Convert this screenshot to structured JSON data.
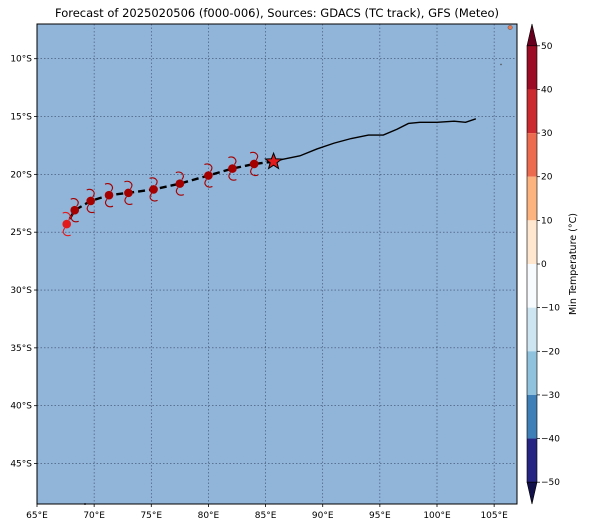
{
  "title": "Forecast of 2025020506 (f000-006), Sources: GDACS (TC track), GFS (Meteo)",
  "map": {
    "lon_range": [
      65,
      107
    ],
    "lat_range": [
      -48.5,
      -7
    ],
    "ocean_color": "#91b4d9",
    "grid": true,
    "lon_ticks": [
      65,
      70,
      75,
      80,
      85,
      90,
      95,
      100,
      105
    ],
    "lon_tick_labels": [
      "65°E",
      "70°E",
      "75°E",
      "80°E",
      "85°E",
      "90°E",
      "95°E",
      "100°E",
      "105°E"
    ],
    "lat_ticks": [
      -10,
      -15,
      -20,
      -25,
      -30,
      -35,
      -40,
      -45
    ],
    "lat_tick_labels": [
      "10°S",
      "15°S",
      "20°S",
      "25°S",
      "30°S",
      "35°S",
      "40°S",
      "45°S"
    ]
  },
  "track": {
    "observed_color": "#000000",
    "observed": [
      [
        85.7,
        -18.9
      ],
      [
        86.5,
        -18.7
      ],
      [
        88.0,
        -18.4
      ],
      [
        89.5,
        -17.8
      ],
      [
        91.0,
        -17.3
      ],
      [
        92.5,
        -16.9
      ],
      [
        94.0,
        -16.6
      ],
      [
        95.3,
        -16.6
      ],
      [
        96.5,
        -16.1
      ],
      [
        97.5,
        -15.6
      ],
      [
        98.5,
        -15.5
      ],
      [
        100.0,
        -15.5
      ],
      [
        101.5,
        -15.4
      ],
      [
        102.5,
        -15.5
      ],
      [
        103.4,
        -15.2
      ]
    ],
    "forecast": [
      [
        85.7,
        -18.9
      ],
      [
        84.0,
        -19.1
      ],
      [
        82.1,
        -19.5
      ],
      [
        80.0,
        -20.1
      ],
      [
        77.5,
        -20.8
      ],
      [
        75.2,
        -21.3
      ],
      [
        73.0,
        -21.6
      ],
      [
        71.3,
        -21.8
      ],
      [
        69.7,
        -22.3
      ],
      [
        68.3,
        -23.1
      ],
      [
        67.6,
        -24.3
      ]
    ],
    "current_position": [
      85.7,
      -18.9
    ],
    "current_marker": "star",
    "current_color": "#e31a1c",
    "forecast_points": [
      {
        "lon": 84.0,
        "lat": -19.1,
        "color": "#a50000"
      },
      {
        "lon": 82.1,
        "lat": -19.5,
        "color": "#a50000"
      },
      {
        "lon": 80.0,
        "lat": -20.1,
        "color": "#a50000"
      },
      {
        "lon": 77.5,
        "lat": -20.8,
        "color": "#a50000"
      },
      {
        "lon": 75.2,
        "lat": -21.3,
        "color": "#a50000"
      },
      {
        "lon": 73.0,
        "lat": -21.6,
        "color": "#a50000"
      },
      {
        "lon": 71.3,
        "lat": -21.8,
        "color": "#a50000"
      },
      {
        "lon": 69.7,
        "lat": -22.3,
        "color": "#a50000"
      },
      {
        "lon": 68.3,
        "lat": -23.1,
        "color": "#a50000"
      },
      {
        "lon": 67.6,
        "lat": -24.3,
        "color": "#e31a1c"
      }
    ]
  },
  "colorbar": {
    "label": "Min Temperature (°C)",
    "min": -55,
    "max": 55,
    "ticks": [
      50,
      40,
      30,
      20,
      10,
      0,
      -10,
      -20,
      -30,
      -40,
      -50
    ],
    "tick_labels": [
      "50",
      "40",
      "30",
      "20",
      "10",
      "0",
      "−10",
      "−20",
      "−30",
      "−40",
      "−50"
    ],
    "bands": [
      {
        "from": 50,
        "to": 55,
        "color": "#67001f"
      },
      {
        "from": 40,
        "to": 50,
        "color": "#9c0c24"
      },
      {
        "from": 30,
        "to": 40,
        "color": "#cb2a2f"
      },
      {
        "from": 20,
        "to": 30,
        "color": "#ec6a4e"
      },
      {
        "from": 10,
        "to": 20,
        "color": "#fdb37e"
      },
      {
        "from": 0,
        "to": 10,
        "color": "#fee6cf"
      },
      {
        "from": -10,
        "to": 0,
        "color": "#f8fbfd"
      },
      {
        "from": -20,
        "to": -10,
        "color": "#cde5f0"
      },
      {
        "from": -30,
        "to": -20,
        "color": "#8fc2dd"
      },
      {
        "from": -40,
        "to": -30,
        "color": "#3f7fb8"
      },
      {
        "from": -50,
        "to": -40,
        "color": "#262483"
      },
      {
        "from": -55,
        "to": -50,
        "color": "#11104a"
      }
    ]
  }
}
